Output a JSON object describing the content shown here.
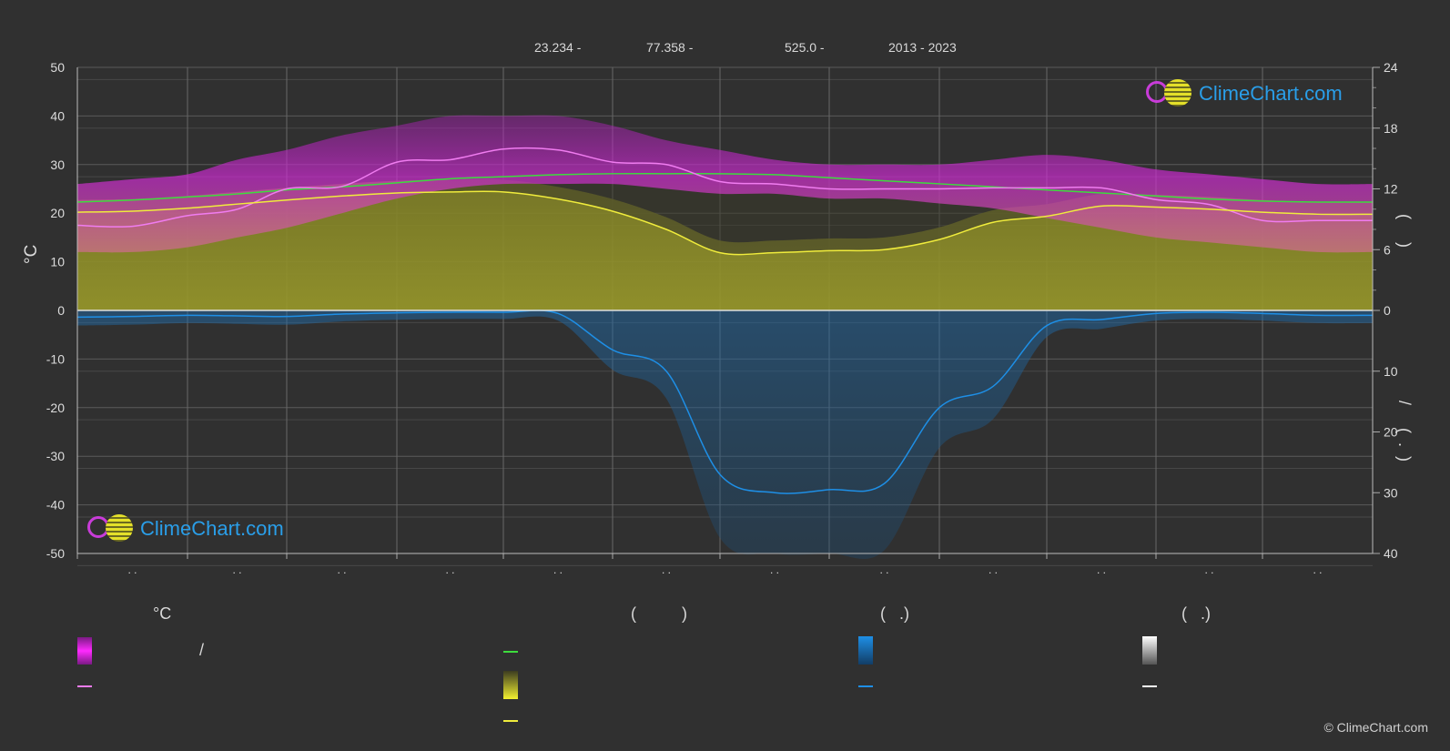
{
  "header": {
    "lat": "23.234 -",
    "lon": "77.358 -",
    "elev": "525.0 -",
    "years": "2013 - 2023"
  },
  "left_axis_unit": "°C",
  "right_axis_top_marks": "(     )",
  "right_axis_bottom_marks": "/     (  .  )",
  "legend": {
    "col1_heading": "°C",
    "col1_slash": "/",
    "col2_heading": "(          )",
    "col3_heading": "(   .)",
    "col4_heading": "(   .)"
  },
  "month_tick_labels": [
    ". .",
    ". .",
    ". .",
    ". .",
    ". .",
    ". .",
    ". .",
    ". .",
    ". .",
    ". .",
    ". .",
    ". ."
  ],
  "logo_text": "ClimeChart.com",
  "copyright": "© ClimeChart.com",
  "colors": {
    "background": "#303030",
    "grid": "#5a5a5a",
    "temp_band": "#d22bd6",
    "temp_mean_line": "#f07cf0",
    "daylight_line": "#3ddc3d",
    "sunshine_band": "#8a8a24",
    "sunshine_line": "#f0ec3c",
    "precip_band": "#1f5f94",
    "precip_line": "#1e8fe6",
    "zero_line": "#dddddd"
  },
  "chart_data": {
    "type": "area",
    "title": "",
    "ylabel": "°C",
    "ylim": [
      -50,
      50
    ],
    "yticks": [
      50,
      40,
      30,
      20,
      10,
      0,
      -10,
      -20,
      -30,
      -40,
      -50
    ],
    "y2_top": {
      "ylim": [
        0,
        24
      ],
      "ticks": [
        24,
        18,
        12,
        6,
        0
      ]
    },
    "y2_bottom": {
      "ylim": [
        0,
        40
      ],
      "ticks": [
        0,
        10,
        20,
        30,
        40
      ]
    },
    "x": [
      0,
      0.5,
      1,
      1.5,
      2,
      2.5,
      3,
      3.5,
      4,
      4.5,
      5,
      5.5,
      6,
      6.5,
      7,
      7.5,
      8,
      8.5,
      9,
      9.5,
      10,
      10.5,
      11,
      11.5,
      12
    ],
    "series": [
      {
        "axis": "temp",
        "kind": "band",
        "max": [
          26,
          27,
          28,
          31,
          33,
          36,
          38,
          40,
          40,
          40,
          38,
          35,
          33,
          31,
          30,
          30,
          30,
          31,
          32,
          31,
          29,
          28,
          27,
          26,
          26
        ],
        "min": [
          12,
          12,
          13,
          15,
          17,
          20,
          23,
          25,
          26,
          26,
          26,
          25,
          24,
          24,
          23,
          23,
          22,
          21,
          19,
          17,
          15,
          14,
          13,
          12,
          12
        ]
      },
      {
        "axis": "temp",
        "kind": "line",
        "values": [
          17.5,
          17.3,
          19.5,
          20.8,
          25,
          25.5,
          30.5,
          31,
          33.2,
          33,
          30.5,
          30,
          26.5,
          26,
          25,
          25,
          25,
          25.2,
          25.2,
          25.2,
          22.8,
          21.8,
          18.5,
          18.5,
          18.5
        ]
      },
      {
        "axis": "hours",
        "kind": "line",
        "values": [
          10.7,
          10.9,
          11.2,
          11.5,
          11.9,
          12.2,
          12.6,
          13.0,
          13.2,
          13.4,
          13.5,
          13.5,
          13.5,
          13.4,
          13.1,
          12.8,
          12.5,
          12.2,
          11.9,
          11.6,
          11.3,
          11.0,
          10.8,
          10.7,
          10.7
        ]
      },
      {
        "axis": "hours",
        "kind": "line",
        "values": [
          9.7,
          9.8,
          10.1,
          10.5,
          10.9,
          11.3,
          11.6,
          11.7,
          11.7,
          11.0,
          9.8,
          8.0,
          5.7,
          5.7,
          5.9,
          6.0,
          7.0,
          8.7,
          9.3,
          10.3,
          10.2,
          10.0,
          9.7,
          9.5,
          9.5
        ]
      },
      {
        "axis": "precip",
        "kind": "line",
        "values": [
          1.1,
          1.0,
          0.8,
          0.9,
          1.0,
          0.6,
          0.4,
          0.3,
          0.3,
          0.5,
          6.5,
          10.0,
          27.0,
          30.0,
          29.5,
          28.5,
          16.0,
          12.5,
          2.5,
          1.5,
          0.5,
          0.3,
          0.5,
          0.8,
          0.8
        ]
      }
    ]
  }
}
